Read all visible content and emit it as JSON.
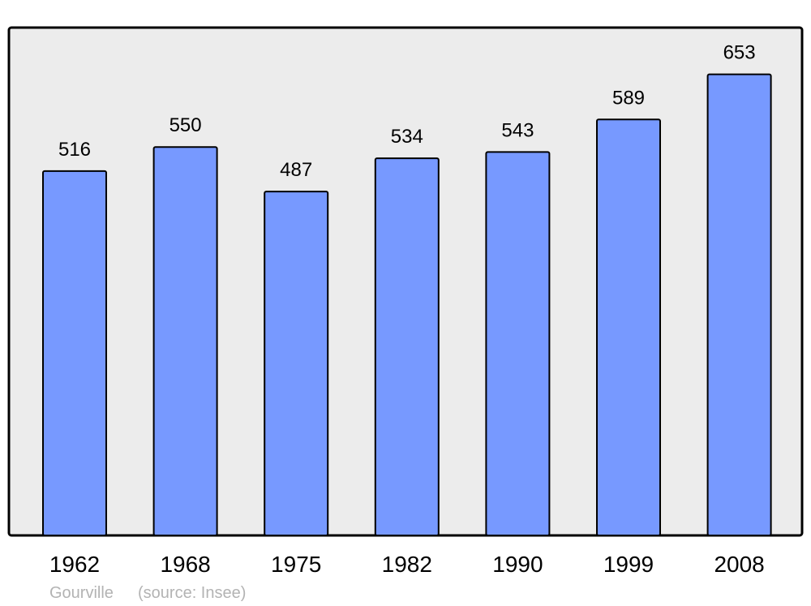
{
  "chart_data": {
    "type": "bar",
    "categories": [
      "1962",
      "1968",
      "1975",
      "1982",
      "1990",
      "1999",
      "2008"
    ],
    "values": [
      516,
      550,
      487,
      534,
      543,
      589,
      653
    ],
    "title": "",
    "xlabel": "",
    "ylabel": "",
    "ylim": [
      0,
      718
    ],
    "grid": false,
    "data_labels": true,
    "colors": {
      "bar": "#7799ff",
      "plot_background": "#ececec",
      "stroke": "#000000",
      "footer_text": "#b3b3b3"
    }
  },
  "footer": {
    "place": "Gourville",
    "source": "(source: Insee)"
  }
}
